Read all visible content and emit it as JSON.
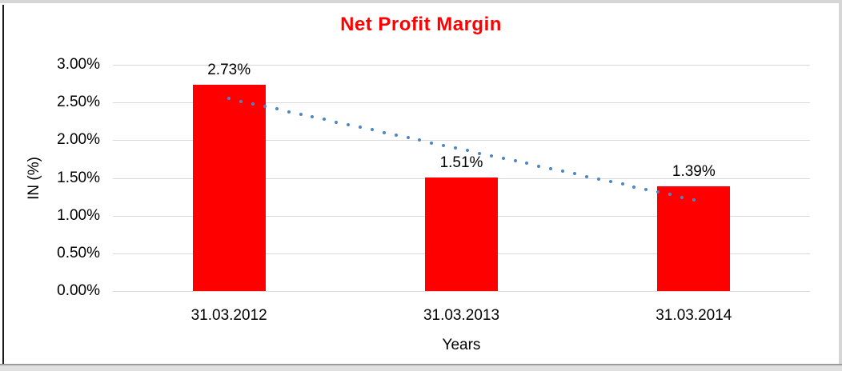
{
  "chart_data": {
    "type": "bar",
    "title": "Net Profit Margin",
    "xlabel": "Years",
    "ylabel": "IN (%)",
    "categories": [
      "31.03.2012",
      "31.03.2013",
      "31.03.2014"
    ],
    "values": [
      2.73,
      1.51,
      1.39
    ],
    "data_labels": [
      "2.73%",
      "1.51%",
      "1.39%"
    ],
    "ylim": [
      0,
      3
    ],
    "ytick_step": 0.5,
    "ytick_labels": [
      "0.00%",
      "0.50%",
      "1.00%",
      "1.50%",
      "2.00%",
      "2.50%",
      "3.00%"
    ],
    "grid": true,
    "legend": "none",
    "colors": {
      "bar": "#FF0000",
      "title": "#FF0000",
      "gridline": "#D9D9D9",
      "axis_text": "#000000",
      "trendline": "#4E86C4"
    },
    "trendline": {
      "type": "linear",
      "style": "dotted",
      "start_value": 2.55,
      "end_value": 1.21
    }
  }
}
